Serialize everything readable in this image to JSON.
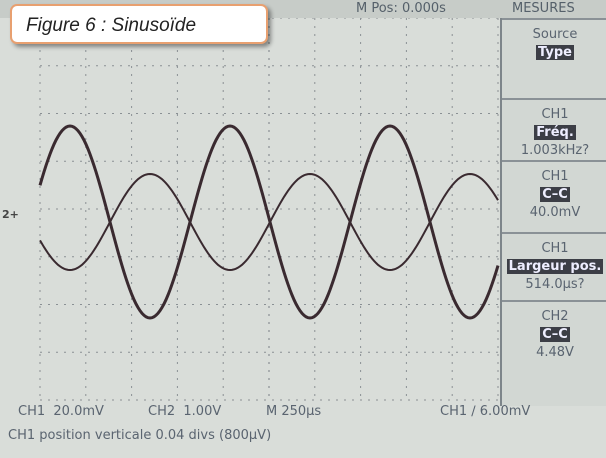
{
  "caption": "Figure 6 : Sinusoïde",
  "top_bar": {
    "position": "M Pos: 0.000s",
    "menu_title": "MESURES"
  },
  "marker": "2+",
  "menu": {
    "items": [
      {
        "label": "Source",
        "value": "Type"
      },
      {
        "channel": "CH1",
        "label": "Fréq.",
        "value": "1.003kHz?"
      },
      {
        "channel": "CH1",
        "label": "C–C",
        "value": "40.0mV"
      },
      {
        "channel": "CH1",
        "label": "Largeur pos.",
        "value": "514.0µs?"
      },
      {
        "channel": "CH2",
        "label": "C–C",
        "value": "4.48V"
      }
    ]
  },
  "status": {
    "items": [
      "CH1  20.0mV",
      "CH2  1.00V",
      "M 250µs",
      "CH1 ∕ 6.00mV"
    ],
    "message": "CH1 position verticale 0.04 divs (800µV)"
  }
}
